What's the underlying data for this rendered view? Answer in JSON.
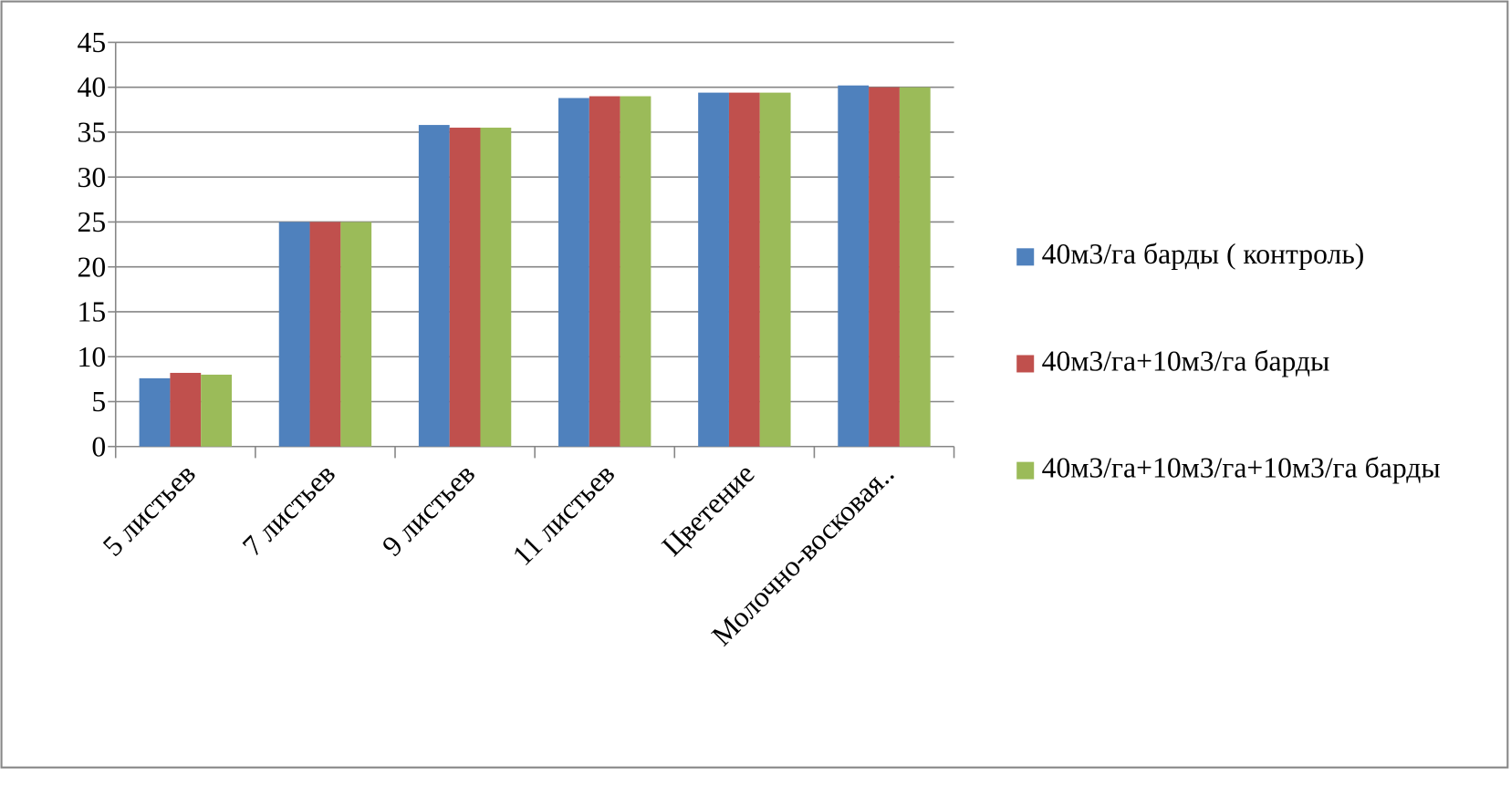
{
  "chart_data": {
    "type": "bar",
    "categories": [
      "5 листьев",
      "7 листьев",
      "9 листьев",
      "11 листьев",
      "Цветение",
      "Молочно-восковая.."
    ],
    "series": [
      {
        "name": "40м3/га барды ( контроль)",
        "color": "#4f81bd",
        "values": [
          7.6,
          25,
          35.8,
          38.8,
          39.4,
          40.2
        ]
      },
      {
        "name": "40м3/га+10м3/га барды",
        "color": "#c0504d",
        "values": [
          8.2,
          25,
          35.5,
          39.0,
          39.4,
          40.0
        ]
      },
      {
        "name": "40м3/га+10м3/га+10м3/га барды",
        "color": "#9bbb59",
        "values": [
          8.0,
          25,
          35.5,
          39.0,
          39.4,
          40.0
        ]
      }
    ],
    "ylim": [
      0,
      45
    ],
    "yticks": [
      0,
      5,
      10,
      15,
      20,
      25,
      30,
      35,
      40,
      45
    ],
    "grid": true,
    "legend": "right"
  }
}
